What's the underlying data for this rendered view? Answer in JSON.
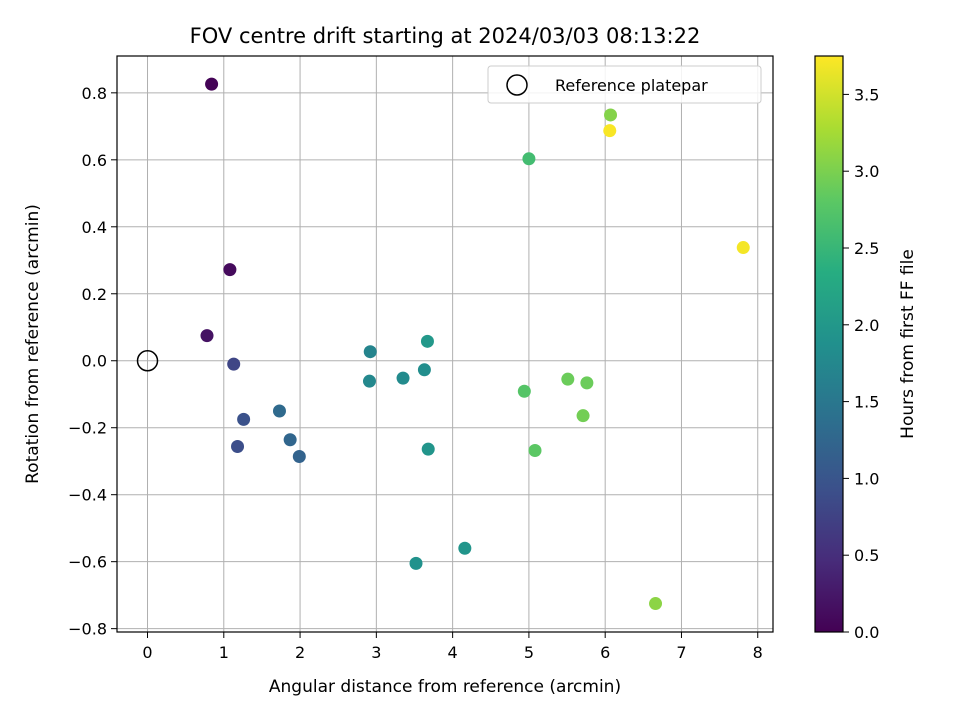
{
  "chart_data": {
    "type": "scatter",
    "title": "FOV centre drift starting at 2024/03/03 08:13:22",
    "xlabel": "Angular distance from reference (arcmin)",
    "ylabel": "Rotation from reference (arcmin)",
    "colorbar_label": "Hours from first FF file",
    "xlim": [
      -0.4,
      8.2
    ],
    "ylim": [
      -0.81,
      0.91
    ],
    "x_ticks": [
      0,
      1,
      2,
      3,
      4,
      5,
      6,
      7,
      8
    ],
    "x_tick_labels": [
      "0",
      "1",
      "2",
      "3",
      "4",
      "5",
      "6",
      "7",
      "8"
    ],
    "y_ticks": [
      0.8,
      0.6,
      0.4,
      0.2,
      0.0,
      -0.2,
      -0.4,
      -0.6,
      -0.8
    ],
    "y_tick_labels": [
      "0.8",
      "0.6",
      "0.4",
      "0.2",
      "0.0",
      "−0.2",
      "−0.4",
      "−0.6",
      "−0.8"
    ],
    "colorbar_range": [
      0.0,
      3.75
    ],
    "colorbar_ticks": [
      0.0,
      0.5,
      1.0,
      1.5,
      2.0,
      2.5,
      3.0,
      3.5
    ],
    "colorbar_tick_labels": [
      "0.0",
      "0.5",
      "1.0",
      "1.5",
      "2.0",
      "2.5",
      "3.0",
      "3.5"
    ],
    "colormap": "viridis",
    "grid": true,
    "legend": {
      "placement": "top-right",
      "entries": [
        "Reference platepar"
      ]
    },
    "reference_point": {
      "x": 0.0,
      "y": 0.0,
      "label": "Reference platepar"
    },
    "series": [
      {
        "points": [
          {
            "x": 0.84,
            "y": 0.826,
            "hours": 0.02
          },
          {
            "x": 1.08,
            "y": 0.272,
            "hours": 0.1
          },
          {
            "x": 0.78,
            "y": 0.075,
            "hours": 0.18
          },
          {
            "x": 1.13,
            "y": -0.01,
            "hours": 0.8
          },
          {
            "x": 1.26,
            "y": -0.175,
            "hours": 0.95
          },
          {
            "x": 1.18,
            "y": -0.256,
            "hours": 0.9
          },
          {
            "x": 1.73,
            "y": -0.15,
            "hours": 1.3
          },
          {
            "x": 1.87,
            "y": -0.236,
            "hours": 1.25
          },
          {
            "x": 1.99,
            "y": -0.286,
            "hours": 1.2
          },
          {
            "x": 2.92,
            "y": 0.027,
            "hours": 1.7
          },
          {
            "x": 2.91,
            "y": -0.061,
            "hours": 1.75
          },
          {
            "x": 3.35,
            "y": -0.052,
            "hours": 1.8
          },
          {
            "x": 3.63,
            "y": -0.027,
            "hours": 1.85
          },
          {
            "x": 3.67,
            "y": 0.058,
            "hours": 2.0
          },
          {
            "x": 3.68,
            "y": -0.264,
            "hours": 1.95
          },
          {
            "x": 3.52,
            "y": -0.605,
            "hours": 1.9
          },
          {
            "x": 4.16,
            "y": -0.56,
            "hours": 1.95
          },
          {
            "x": 5.0,
            "y": 0.603,
            "hours": 2.6
          },
          {
            "x": 4.94,
            "y": -0.091,
            "hours": 2.75
          },
          {
            "x": 5.08,
            "y": -0.268,
            "hours": 2.8
          },
          {
            "x": 5.51,
            "y": -0.055,
            "hours": 2.9
          },
          {
            "x": 5.76,
            "y": -0.066,
            "hours": 2.9
          },
          {
            "x": 5.71,
            "y": -0.164,
            "hours": 2.95
          },
          {
            "x": 6.07,
            "y": 0.734,
            "hours": 3.05
          },
          {
            "x": 6.06,
            "y": 0.687,
            "hours": 3.72
          },
          {
            "x": 6.66,
            "y": -0.725,
            "hours": 3.1
          },
          {
            "x": 7.81,
            "y": 0.338,
            "hours": 3.7
          }
        ]
      }
    ]
  }
}
